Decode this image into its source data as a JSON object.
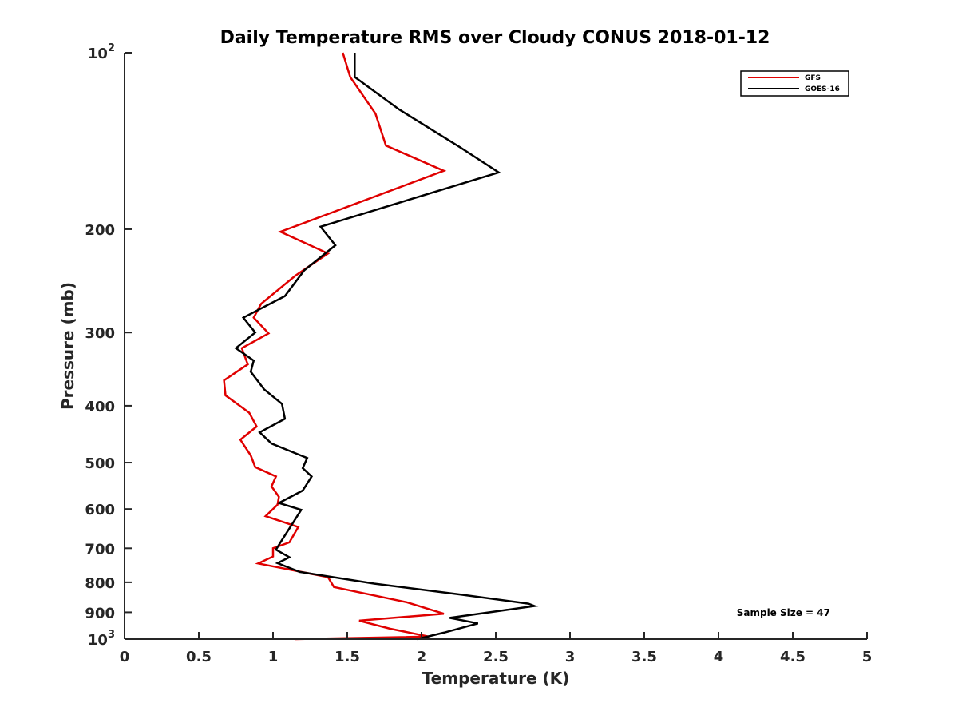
{
  "chart_data": {
    "type": "line",
    "title": "Daily Temperature RMS over Cloudy CONUS 2018-01-12",
    "xlabel": "Temperature (K)",
    "ylabel": "Pressure (mb)",
    "xlim": [
      0,
      5
    ],
    "ylim": [
      100,
      1000
    ],
    "y_scale": "log",
    "y_reversed": true,
    "grid": false,
    "legend_position": "top-right",
    "x_ticks": [
      0,
      0.5,
      1,
      1.5,
      2,
      2.5,
      3,
      3.5,
      4,
      4.5,
      5
    ],
    "x_tick_labels": [
      "0",
      "0.5",
      "1",
      "1.5",
      "2",
      "2.5",
      "3",
      "3.5",
      "4",
      "4.5",
      "5"
    ],
    "y_ticks": [
      100,
      200,
      300,
      400,
      500,
      600,
      700,
      800,
      900,
      1000
    ],
    "y_tick_labels": [
      {
        "base": "10",
        "sup": "2"
      },
      {
        "base": "200",
        "sup": ""
      },
      {
        "base": "300",
        "sup": ""
      },
      {
        "base": "400",
        "sup": ""
      },
      {
        "base": "500",
        "sup": ""
      },
      {
        "base": "600",
        "sup": ""
      },
      {
        "base": "700",
        "sup": ""
      },
      {
        "base": "800",
        "sup": ""
      },
      {
        "base": "900",
        "sup": ""
      },
      {
        "base": "10",
        "sup": "3"
      }
    ],
    "series": [
      {
        "name": "GFS",
        "color": "#e00000",
        "x": [
          1.47,
          1.52,
          1.69,
          1.76,
          2.15,
          1.05,
          1.37,
          1.15,
          0.92,
          0.87,
          0.97,
          0.79,
          0.83,
          0.67,
          0.68,
          0.84,
          0.89,
          0.78,
          0.85,
          0.88,
          1.02,
          0.99,
          1.04,
          1.03,
          0.95,
          1.17,
          1.11,
          1.0,
          1.0,
          0.9,
          1.37,
          1.41,
          1.9,
          2.15,
          1.58,
          1.79,
          2.05,
          1.15
        ],
        "y": [
          100,
          110,
          127,
          144,
          159,
          202,
          220,
          240,
          268,
          283,
          301,
          319,
          340,
          362,
          384,
          411,
          434,
          457,
          486,
          509,
          528,
          549,
          572,
          590,
          617,
          644,
          684,
          700,
          723,
          743,
          784,
          815,
          865,
          905,
          930,
          960,
          990,
          1000
        ]
      },
      {
        "name": "GOES-16",
        "color": "#000000",
        "x": [
          1.55,
          1.55,
          1.85,
          2.26,
          2.52,
          1.32,
          1.42,
          1.21,
          1.08,
          0.8,
          0.88,
          0.75,
          0.87,
          0.85,
          0.94,
          1.06,
          1.08,
          0.91,
          0.99,
          1.23,
          1.2,
          1.26,
          1.2,
          1.04,
          1.19,
          1.13,
          1.05,
          1.02,
          1.11,
          1.03,
          1.18,
          1.68,
          2.27,
          2.72,
          2.76,
          2.19,
          2.38,
          2.15,
          1.97
        ],
        "y": [
          100,
          110,
          125,
          145,
          160,
          198,
          213,
          235,
          260,
          283,
          300,
          319,
          335,
          350,
          375,
          397,
          421,
          444,
          464,
          491,
          511,
          528,
          558,
          586,
          602,
          636,
          684,
          704,
          725,
          742,
          768,
          804,
          840,
          870,
          878,
          920,
          940,
          975,
          1000
        ]
      }
    ],
    "annotations": [
      "Sample Size = 47"
    ]
  }
}
